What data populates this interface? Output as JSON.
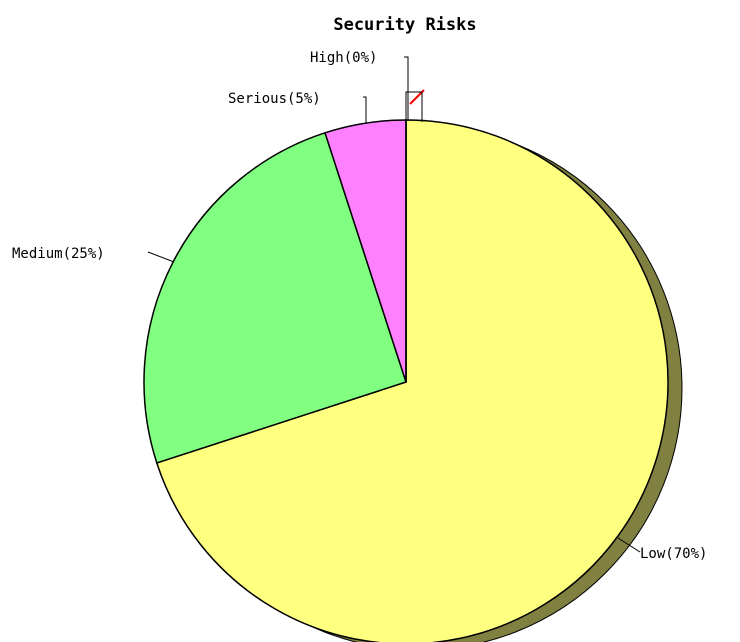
{
  "chart_data": {
    "type": "pie",
    "title": "Security Risks",
    "slices": [
      {
        "name": "Low",
        "value": 70,
        "label": "Low(70%)",
        "color": "#ffff80"
      },
      {
        "name": "Medium",
        "value": 25,
        "label": "Medium(25%)",
        "color": "#80ff80"
      },
      {
        "name": "Serious",
        "value": 5,
        "label": "Serious(5%)",
        "color": "#ff80ff"
      },
      {
        "name": "High",
        "value": 0,
        "label": "High(0%)",
        "color": "#ff0000"
      }
    ],
    "shadow_color": "#808040",
    "edge_color": "#000000",
    "three_d": true
  }
}
